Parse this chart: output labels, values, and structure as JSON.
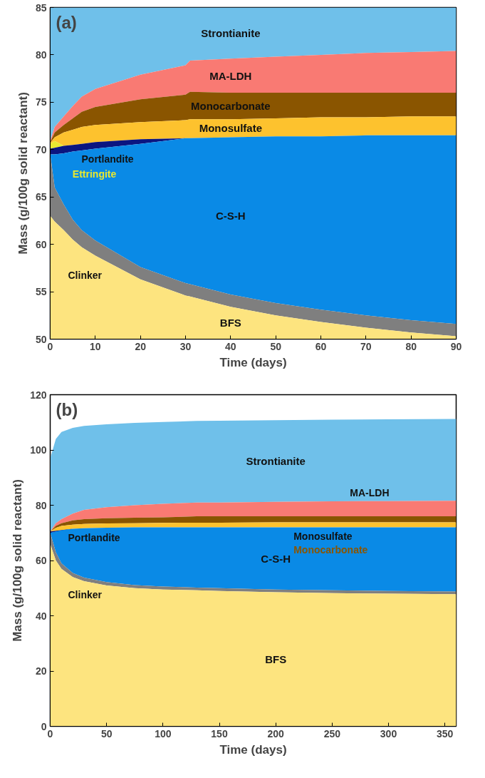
{
  "chart_data": [
    {
      "type": "area",
      "title": "(a)",
      "xlabel": "Time (days)",
      "ylabel": "Mass (g/100g solid reactant)",
      "x": [
        0,
        1,
        3,
        5,
        7,
        10,
        20,
        30,
        31,
        40,
        50,
        60,
        70,
        80,
        90
      ],
      "xlim": [
        0,
        90
      ],
      "ylim": [
        50,
        85
      ],
      "xticks": [
        0,
        10,
        20,
        30,
        40,
        50,
        60,
        70,
        80,
        90
      ],
      "yticks": [
        50,
        55,
        60,
        65,
        70,
        75,
        80,
        85
      ],
      "series": [
        {
          "name": "BFS",
          "color": "#fde47f",
          "values": [
            63,
            62.4,
            61.5,
            60.5,
            59.7,
            58.8,
            56.3,
            54.6,
            54.5,
            53.4,
            52.5,
            51.8,
            51.2,
            50.7,
            50.3
          ]
        },
        {
          "name": "Clinker",
          "color": "#7f7f7f",
          "values": [
            69.5,
            66,
            64.2,
            62.6,
            61.5,
            60.4,
            57.6,
            55.9,
            55.8,
            54.7,
            53.8,
            53.1,
            52.5,
            52.0,
            51.6
          ]
        },
        {
          "name": "C-S-H",
          "color": "#0a8ae6",
          "values": [
            69.5,
            69.5,
            69.6,
            69.8,
            69.9,
            70.1,
            70.6,
            71.2,
            71.2,
            71.3,
            71.4,
            71.4,
            71.5,
            71.5,
            71.5
          ]
        },
        {
          "name": "Portlandite",
          "color": "#0b1580",
          "values": [
            70.1,
            70.2,
            70.4,
            70.5,
            70.6,
            70.8,
            71.1,
            71.2,
            null,
            null,
            null,
            null,
            null,
            null,
            null
          ]
        },
        {
          "name": "Ettringite",
          "color": "#e8e830",
          "values": [
            70.6,
            70.9,
            70.4,
            null,
            null,
            null,
            null,
            null,
            null,
            null,
            null,
            null,
            null,
            null,
            null
          ]
        },
        {
          "name": "Monosulfate",
          "color": "#fdc22e",
          "values": [
            70.7,
            71.3,
            71.8,
            72.1,
            72.4,
            72.6,
            72.9,
            73.1,
            73.2,
            73.2,
            73.3,
            73.4,
            73.4,
            73.5,
            73.5
          ]
        },
        {
          "name": "Monocarbonate",
          "color": "#8a5500",
          "values": [
            70.8,
            71.8,
            72.6,
            73.3,
            74.0,
            74.5,
            75.3,
            75.8,
            76.1,
            76.0,
            76.0,
            76.0,
            76.0,
            76.0,
            76.0
          ]
        },
        {
          "name": "MA-LDH",
          "color": "#f97a73",
          "values": [
            70.9,
            72.4,
            73.5,
            74.6,
            75.6,
            76.4,
            77.9,
            78.9,
            79.4,
            79.6,
            79.8,
            80.0,
            80.2,
            80.3,
            80.4
          ]
        },
        {
          "name": "Strontianite",
          "color": "#6fc0ea",
          "values": [
            85,
            85,
            85,
            85,
            85,
            85,
            85,
            85,
            85,
            85,
            85,
            85,
            85,
            85,
            85
          ]
        }
      ]
    },
    {
      "type": "area",
      "title": "(b)",
      "xlabel": "Time (days)",
      "ylabel": "Mass (g/100g solid reactant)",
      "x": [
        0,
        5,
        10,
        20,
        30,
        50,
        75,
        100,
        130,
        150,
        200,
        250,
        300,
        360
      ],
      "xlim": [
        0,
        360
      ],
      "ylim": [
        0,
        120
      ],
      "xticks": [
        0,
        50,
        100,
        150,
        200,
        250,
        300,
        350
      ],
      "yticks": [
        0,
        20,
        40,
        60,
        80,
        100,
        120
      ],
      "series": [
        {
          "name": "BFS",
          "color": "#fde47f",
          "values": [
            66,
            60,
            57,
            54,
            52.5,
            51,
            50,
            49.5,
            49.2,
            49,
            48.5,
            48.2,
            48,
            47.8
          ]
        },
        {
          "name": "Clinker",
          "color": "#7f7f7f",
          "values": [
            70,
            63,
            59,
            55.5,
            53.8,
            52.2,
            51.1,
            50.6,
            50.2,
            50,
            49.5,
            49.2,
            49,
            48.8
          ]
        },
        {
          "name": "C-S-H",
          "color": "#0a8ae6",
          "values": [
            70,
            70.5,
            71,
            71.5,
            71.7,
            71.9,
            72,
            72,
            72,
            72,
            72,
            72,
            72,
            72
          ]
        },
        {
          "name": "Portlandite",
          "color": "#0b1580",
          "x": [
            0,
            20
          ],
          "values": [
            70.5,
            71.5
          ]
        },
        {
          "name": "Monosulfate",
          "color": "#fdc22e",
          "values": [
            70.5,
            71.8,
            72.5,
            73,
            73.2,
            73.4,
            73.5,
            73.6,
            73.7,
            73.7,
            73.8,
            73.8,
            73.8,
            73.8
          ]
        },
        {
          "name": "Monocarbonate",
          "color": "#8a5500",
          "values": [
            70.5,
            72.5,
            73.5,
            74.5,
            75,
            75.3,
            75.5,
            75.6,
            76,
            76,
            76,
            76,
            76,
            76
          ]
        },
        {
          "name": "MA-LDH",
          "color": "#f97a73",
          "values": [
            70.5,
            73.5,
            75,
            77,
            78.3,
            79.3,
            80,
            80.5,
            81,
            81,
            81.2,
            81.4,
            81.5,
            81.6
          ]
        },
        {
          "name": "Strontianite",
          "color": "#6fc0ea",
          "values": [
            97,
            104,
            106.5,
            108,
            108.7,
            109.3,
            109.8,
            110.1,
            110.5,
            110.6,
            110.8,
            111,
            111.1,
            111.2
          ]
        }
      ]
    }
  ]
}
